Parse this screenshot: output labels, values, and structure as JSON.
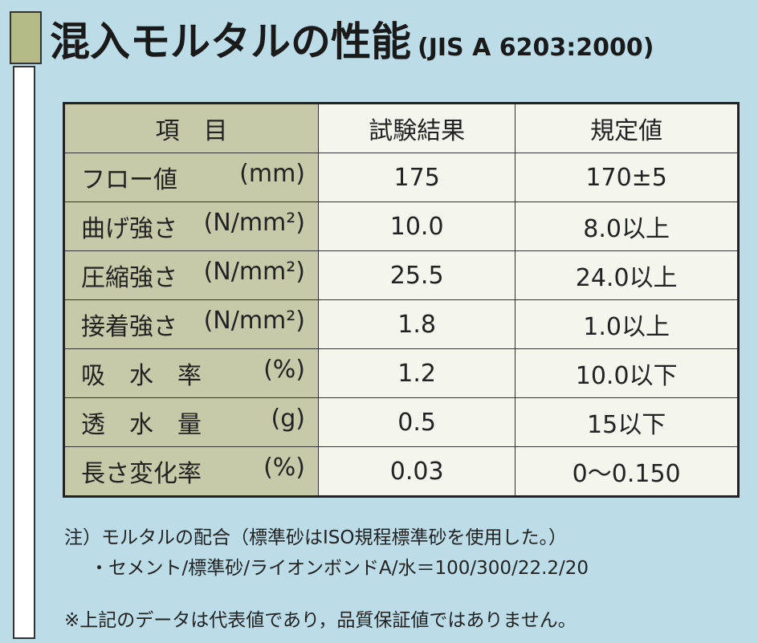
{
  "header": {
    "title": "混入モルタルの性能",
    "standard": "(JIS A 6203:2000)"
  },
  "table": {
    "columns": [
      "項　目",
      "試験結果",
      "規定値"
    ],
    "rows": [
      [
        "フロー値",
        "(mm)",
        "175",
        "170±5"
      ],
      [
        "曲げ強さ",
        "(N/mm²)",
        "10.0",
        "8.0以上"
      ],
      [
        "圧縮強さ",
        "(N/mm²)",
        "25.5",
        "24.0以上"
      ],
      [
        "接着強さ",
        "(N/mm²)",
        "1.8",
        "1.0以上"
      ],
      [
        "吸　水　率",
        "(%)",
        "1.2",
        "10.0以下"
      ],
      [
        "透　水　量",
        "(g)",
        "0.5",
        "15以下"
      ],
      [
        "長さ変化率",
        "(%)",
        "0.03",
        "0～0.150"
      ]
    ]
  },
  "notes": [
    "注）モルタルの配合（標準砂はISO規程標準砂を使用した。）",
    "・セメント/標準砂/ライオンボンドA/水＝100/300/22.2/20",
    "※上記のデータは代表値であり，品質保証値ではありません。"
  ]
}
